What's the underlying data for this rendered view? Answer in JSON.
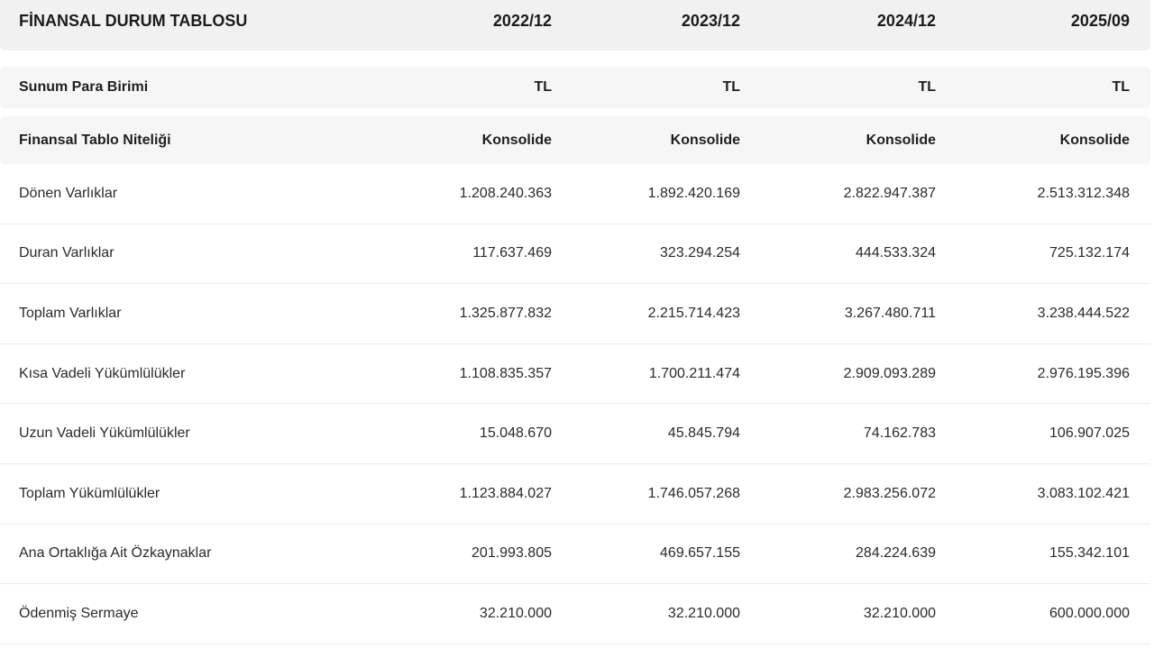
{
  "header": {
    "title": "FİNANSAL DURUM TABLOSU",
    "periods": [
      "2022/12",
      "2023/12",
      "2024/12",
      "2025/09"
    ]
  },
  "currency_row": {
    "label": "Sunum Para Birimi",
    "values": [
      "TL",
      "TL",
      "TL",
      "TL"
    ]
  },
  "type_row": {
    "label": "Finansal Tablo Niteliği",
    "values": [
      "Konsolide",
      "Konsolide",
      "Konsolide",
      "Konsolide"
    ]
  },
  "rows": [
    {
      "label": "Dönen Varlıklar",
      "values": [
        "1.208.240.363",
        "1.892.420.169",
        "2.822.947.387",
        "2.513.312.348"
      ]
    },
    {
      "label": "Duran Varlıklar",
      "values": [
        "117.637.469",
        "323.294.254",
        "444.533.324",
        "725.132.174"
      ]
    },
    {
      "label": "Toplam Varlıklar",
      "values": [
        "1.325.877.832",
        "2.215.714.423",
        "3.267.480.711",
        "3.238.444.522"
      ]
    },
    {
      "label": "Kısa Vadeli Yükümlülükler",
      "values": [
        "1.108.835.357",
        "1.700.211.474",
        "2.909.093.289",
        "2.976.195.396"
      ]
    },
    {
      "label": "Uzun Vadeli Yükümlülükler",
      "values": [
        "15.048.670",
        "45.845.794",
        "74.162.783",
        "106.907.025"
      ]
    },
    {
      "label": "Toplam Yükümlülükler",
      "values": [
        "1.123.884.027",
        "1.746.057.268",
        "2.983.256.072",
        "3.083.102.421"
      ]
    },
    {
      "label": "Ana Ortaklığa Ait Özkaynaklar",
      "values": [
        "201.993.805",
        "469.657.155",
        "284.224.639",
        "155.342.101"
      ]
    },
    {
      "label": "Ödenmiş Sermaye",
      "values": [
        "32.210.000",
        "32.210.000",
        "32.210.000",
        "600.000.000"
      ]
    }
  ]
}
